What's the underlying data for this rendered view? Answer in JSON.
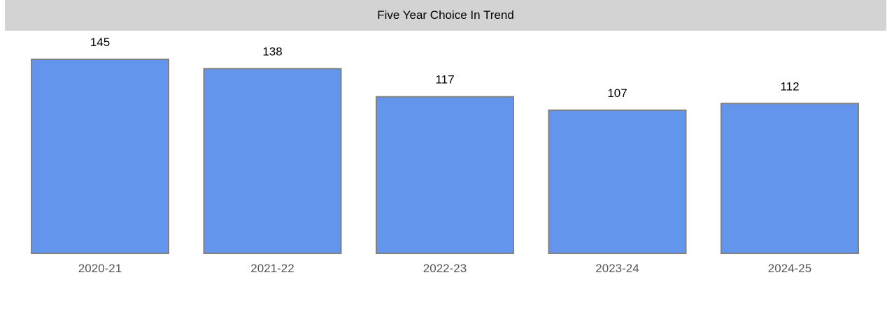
{
  "chart_data": {
    "type": "bar",
    "title": "Five Year Choice In Trend",
    "categories": [
      "2020-21",
      "2021-22",
      "2022-23",
      "2023-24",
      "2024-25"
    ],
    "values": [
      145,
      138,
      117,
      107,
      112
    ],
    "xlabel": "",
    "ylabel": "",
    "ylim": [
      0,
      145
    ],
    "grid": false,
    "legend": "none",
    "colors": {
      "bar_fill": "#6495ed",
      "bar_stroke": "#808080",
      "title_background": "#d3d3d3"
    }
  }
}
